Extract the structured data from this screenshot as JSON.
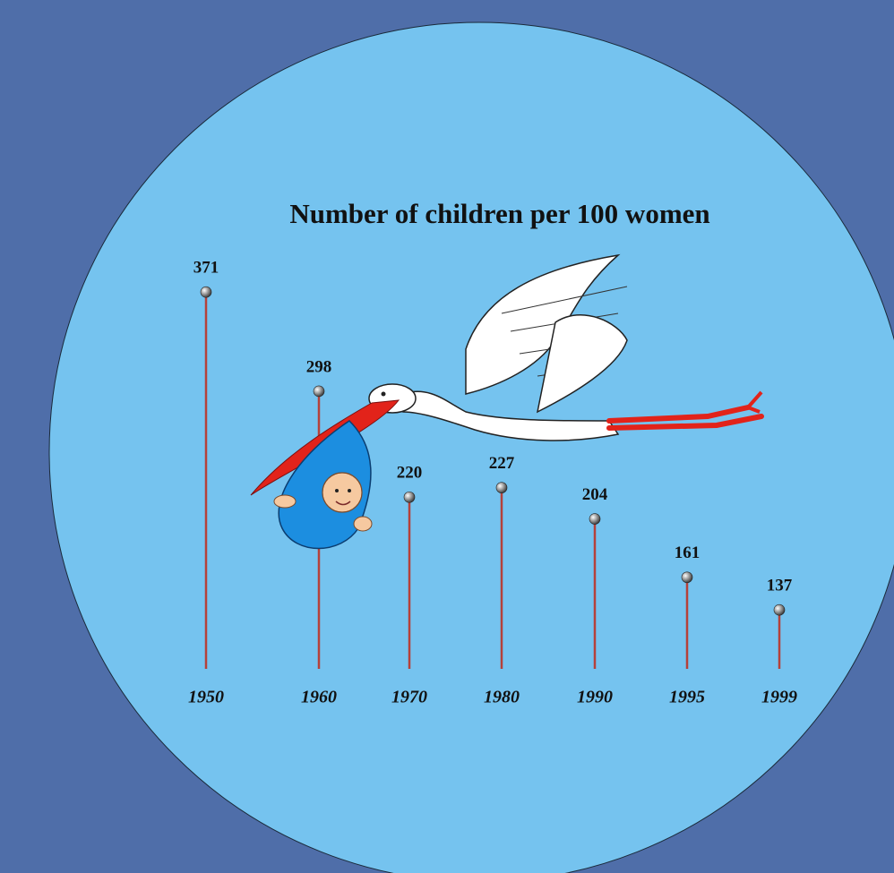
{
  "chart_data": {
    "type": "lollipop",
    "title": "Number of children per 100 women",
    "categories": [
      "1950",
      "1960",
      "1970",
      "1980",
      "1990",
      "1995",
      "1999"
    ],
    "values": [
      371,
      298,
      220,
      227,
      204,
      161,
      137
    ],
    "color": "#b5413a"
  }
}
